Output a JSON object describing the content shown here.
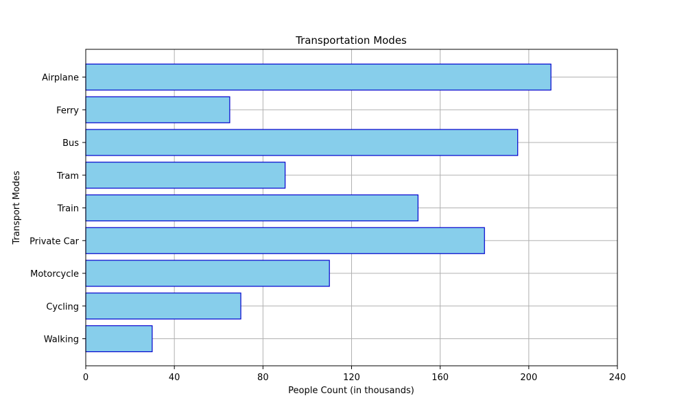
{
  "chart_data": {
    "type": "bar",
    "orientation": "horizontal",
    "title": "Transportation Modes",
    "xlabel": "People Count (in thousands)",
    "ylabel": "Transport Modes",
    "categories": [
      "Walking",
      "Cycling",
      "Motorcycle",
      "Private Car",
      "Train",
      "Tram",
      "Bus",
      "Ferry",
      "Airplane"
    ],
    "values": [
      30,
      70,
      110,
      180,
      150,
      90,
      195,
      65,
      210
    ],
    "xlim": [
      0,
      240
    ],
    "xticks": [
      0,
      40,
      80,
      120,
      160,
      200,
      240
    ],
    "grid": true,
    "colors": {
      "bar_fill": "#87ceeb",
      "bar_edge": "#0000cd",
      "grid": "#b0b0b0",
      "axis": "#000000"
    }
  }
}
